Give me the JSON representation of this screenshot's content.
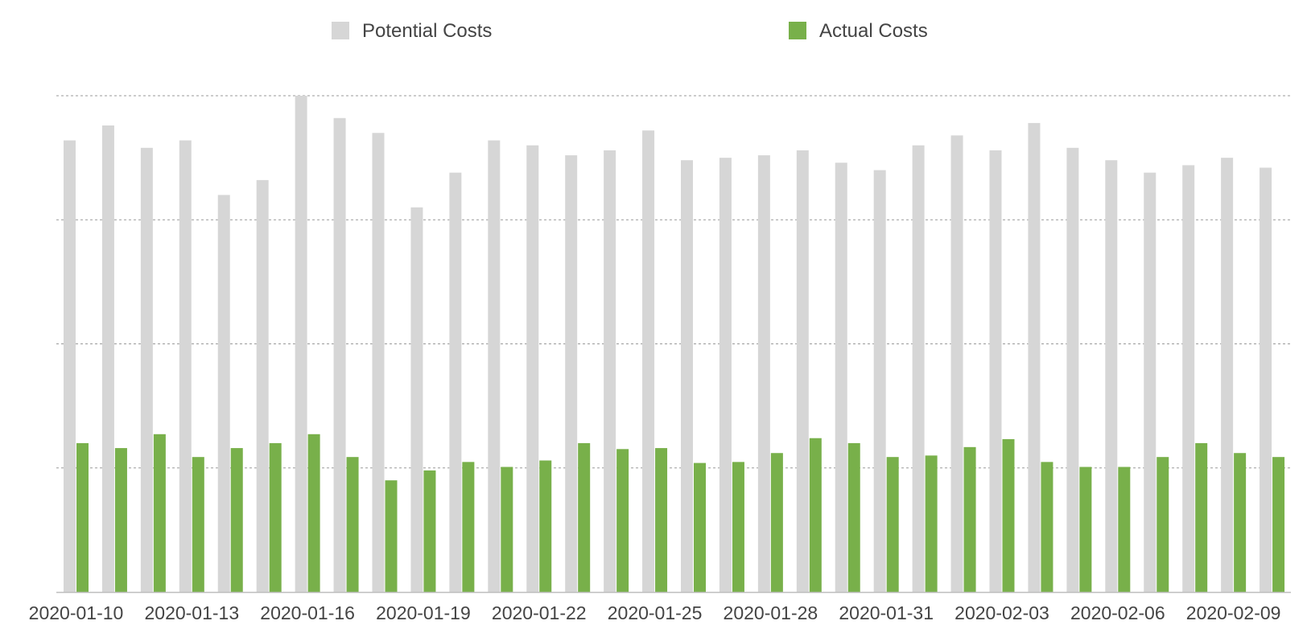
{
  "chart_data": {
    "type": "bar",
    "title": "",
    "xlabel": "",
    "ylabel": "",
    "ylim": [
      0,
      100
    ],
    "grid": true,
    "legend_position": "top-center",
    "categories": [
      "2020-01-10",
      "2020-01-11",
      "2020-01-12",
      "2020-01-13",
      "2020-01-14",
      "2020-01-15",
      "2020-01-16",
      "2020-01-17",
      "2020-01-18",
      "2020-01-19",
      "2020-01-20",
      "2020-01-21",
      "2020-01-22",
      "2020-01-23",
      "2020-01-24",
      "2020-01-25",
      "2020-01-26",
      "2020-01-27",
      "2020-01-28",
      "2020-01-29",
      "2020-01-30",
      "2020-01-31",
      "2020-02-01",
      "2020-02-02",
      "2020-02-03",
      "2020-02-04",
      "2020-02-05",
      "2020-02-06",
      "2020-02-07",
      "2020-02-08",
      "2020-02-09",
      "2020-02-10"
    ],
    "tick_labels": [
      "2020-01-10",
      "2020-01-13",
      "2020-01-16",
      "2020-01-19",
      "2020-01-22",
      "2020-01-25",
      "2020-01-28",
      "2020-01-31",
      "2020-02-03",
      "2020-02-06",
      "2020-02-09"
    ],
    "series": [
      {
        "name": "Potential Costs",
        "color": "#d6d6d6",
        "values": [
          91,
          94,
          89.5,
          91,
          80,
          83,
          100,
          95.5,
          92.5,
          77.5,
          84.5,
          91,
          90,
          88,
          89,
          93,
          87,
          87.5,
          88,
          89,
          86.5,
          85,
          90,
          92,
          89,
          94.5,
          89.5,
          87,
          84.5,
          86,
          87.5,
          85.5
        ]
      },
      {
        "name": "Actual Costs",
        "color": "#78b04a",
        "values": [
          30,
          29,
          31.8,
          27.2,
          29,
          30,
          31.8,
          27.2,
          22.5,
          24.5,
          26.2,
          25.2,
          26.5,
          30,
          28.8,
          29,
          26,
          26.2,
          28,
          31,
          30,
          27.2,
          27.5,
          29.2,
          30.8,
          26.2,
          25.2,
          25.2,
          27.2,
          30,
          28,
          27.2
        ]
      }
    ]
  }
}
